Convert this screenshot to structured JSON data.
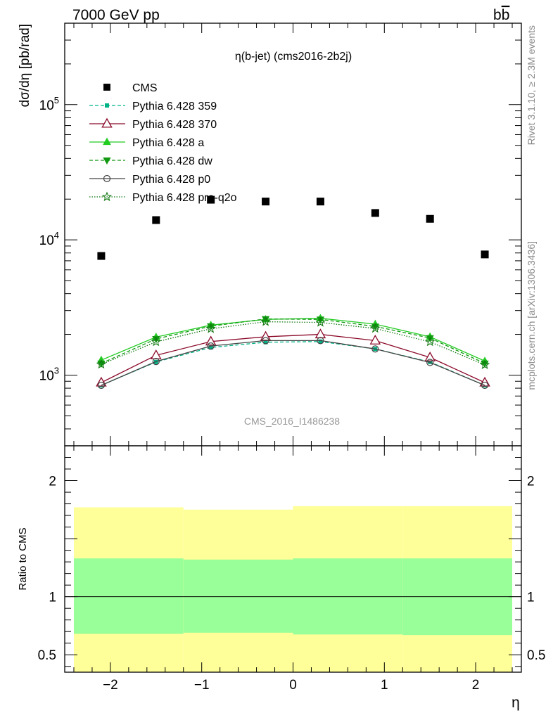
{
  "header": {
    "left": "7000 GeV pp",
    "right_base": "b",
    "right_bar": "b"
  },
  "side": {
    "rivet": "Rivet 3.1.10, ≥ 2.3M events",
    "mcplots": "mcplots.cern.ch [arXiv:1306.3436]"
  },
  "chart_data": {
    "type": "scatter",
    "title": "η(b-jet) (cms2016-2b2j)",
    "watermark": "CMS_2016_I1486238",
    "xlabel": "η",
    "ylabel": "dσ/dη [pb/rad]",
    "ratio_ylabel": "Ratio to CMS",
    "xlim": [
      -2.5,
      2.5
    ],
    "ylim": [
      300,
      400000
    ],
    "yscale": "log",
    "ratio_ylim": [
      0.35,
      2.3
    ],
    "x_ticks": [
      "−2",
      "−1",
      "0",
      "1",
      "2"
    ],
    "x_tick_values": [
      -2,
      -1,
      0,
      1,
      2
    ],
    "y_ticks_main": [
      {
        "value": 1000,
        "base": "10",
        "exp": "3"
      },
      {
        "value": 10000,
        "base": "10",
        "exp": "4"
      },
      {
        "value": 100000,
        "base": "10",
        "exp": "5"
      }
    ],
    "y_ticks_ratio": [
      {
        "value": 0.5,
        "label": "0.5"
      },
      {
        "value": 1,
        "label": "1"
      },
      {
        "value": 2,
        "label": "2"
      }
    ],
    "legend_position": "top-left",
    "x": [
      -2.1,
      -1.5,
      -0.9,
      -0.3,
      0.3,
      0.9,
      1.5,
      2.1
    ],
    "series": [
      {
        "name": "CMS",
        "marker": "square-filled",
        "color": "#000000",
        "dash": "",
        "values": [
          7600,
          14000,
          19800,
          19200,
          19200,
          15800,
          14300,
          7800
        ]
      },
      {
        "name": "Pythia 6.428 359",
        "marker": "square-small",
        "color": "#00b386",
        "dash": "5,3",
        "values": [
          840,
          1250,
          1600,
          1750,
          1770,
          1560,
          1250,
          840
        ]
      },
      {
        "name": "Pythia 6.428 370",
        "marker": "triangle-open",
        "color": "#8b0a2a",
        "dash": "",
        "values": [
          880,
          1400,
          1770,
          1920,
          2000,
          1800,
          1350,
          880
        ]
      },
      {
        "name": "Pythia 6.428 a",
        "marker": "triangle-filled",
        "color": "#22cc22",
        "dash": "",
        "values": [
          1290,
          1910,
          2340,
          2580,
          2630,
          2380,
          1920,
          1270
        ]
      },
      {
        "name": "Pythia 6.428 dw",
        "marker": "triangle-down-filled",
        "color": "#119911",
        "dash": "5,3",
        "values": [
          1220,
          1850,
          2300,
          2600,
          2580,
          2290,
          1880,
          1220
        ]
      },
      {
        "name": "Pythia 6.428 p0",
        "marker": "circle-open",
        "color": "#444444",
        "dash": "",
        "values": [
          840,
          1260,
          1640,
          1800,
          1800,
          1560,
          1240,
          840
        ]
      },
      {
        "name": "Pythia 6.428 pro-q2o",
        "marker": "star-open",
        "color": "#117711",
        "dash": "1.5,2",
        "values": [
          1200,
          1760,
          2200,
          2480,
          2450,
          2210,
          1760,
          1190
        ]
      }
    ],
    "ratio_bands": {
      "edges": [
        -2.4,
        -1.2,
        0,
        1.2,
        2.4
      ],
      "green_color": "#99ff99",
      "yellow_color": "#ffff99",
      "green_lo": [
        0.68,
        0.69,
        0.675,
        0.67
      ],
      "green_hi": [
        1.33,
        1.32,
        1.33,
        1.33
      ],
      "yellow_lo": [
        0.35,
        0.35,
        0.35,
        0.35
      ],
      "yellow_hi": [
        1.77,
        1.75,
        1.78,
        1.78
      ]
    }
  }
}
